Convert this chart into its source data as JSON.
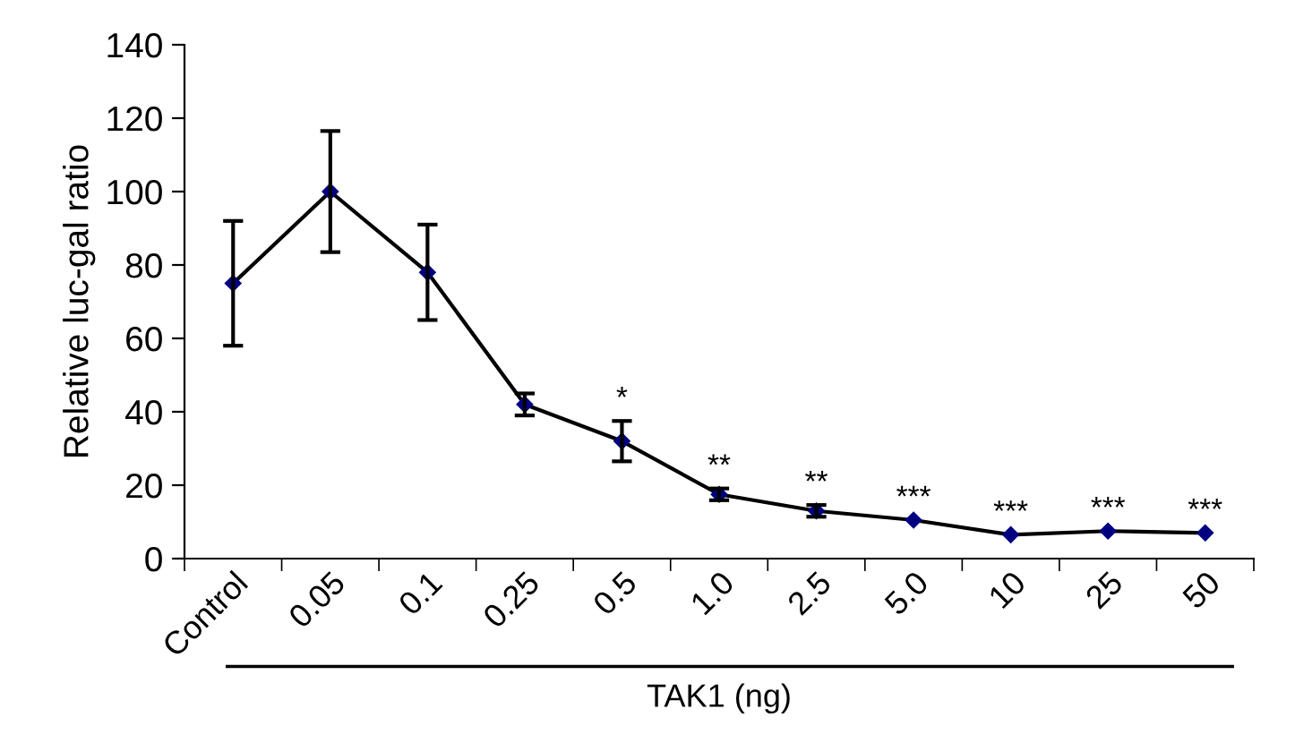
{
  "chart_data": {
    "type": "line",
    "xlabel": "TAK1 (ng)",
    "ylabel": "Relative luc-gal ratio",
    "categories": [
      "Control",
      "0.05",
      "0.1",
      "0.25",
      "0.5",
      "1.0",
      "2.5",
      "5.0",
      "10",
      "25",
      "50"
    ],
    "series": [
      {
        "color": "#000080",
        "values": [
          75,
          100,
          78,
          42,
          32,
          17.5,
          13,
          10.5,
          6.5,
          7.5,
          7
        ],
        "errors": [
          17,
          16.5,
          13,
          3,
          5.5,
          1.6,
          1.6,
          null,
          null,
          null,
          null
        ]
      }
    ],
    "ylim": [
      0,
      140
    ],
    "yticks": [
      0,
      20,
      40,
      60,
      80,
      100,
      120,
      140
    ],
    "marker": "diamond",
    "line_style": "solid",
    "grid": false,
    "legend": false,
    "annotations": [
      {
        "text": "*",
        "x": "0.5",
        "y": 32
      },
      {
        "text": "**",
        "x": "1.0",
        "y": 17.5
      },
      {
        "text": "**",
        "x": "2.5",
        "y": 13
      },
      {
        "text": "***",
        "x": "5.0",
        "y": 10.5
      },
      {
        "text": "***",
        "x": "10",
        "y": 6.5
      },
      {
        "text": "***",
        "x": "25",
        "y": 7.5
      },
      {
        "text": "***",
        "x": "50",
        "y": 7
      }
    ]
  }
}
